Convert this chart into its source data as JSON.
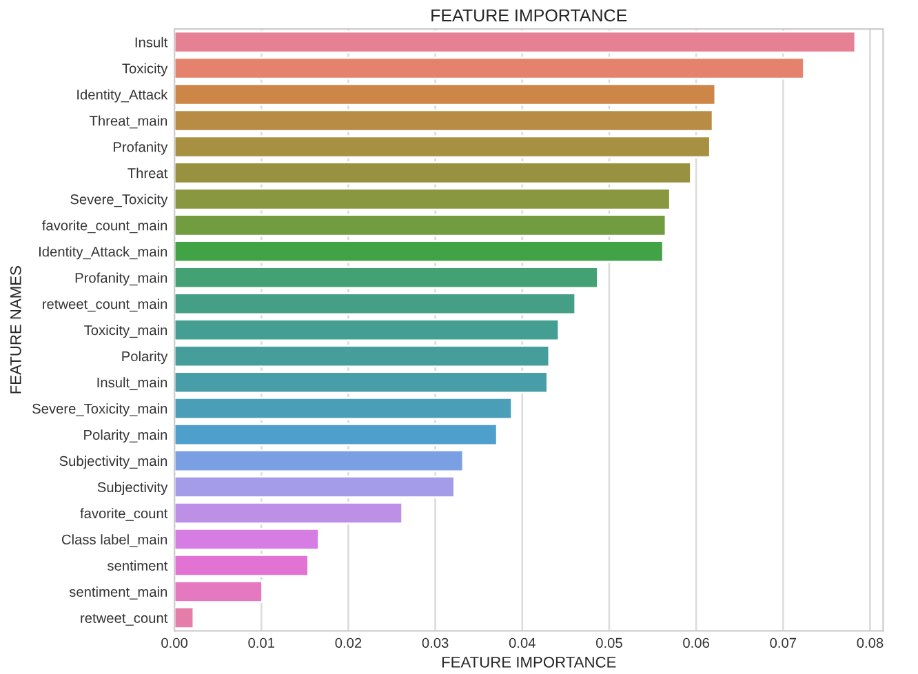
{
  "chart_data": {
    "type": "bar",
    "orientation": "horizontal",
    "title": "FEATURE IMPORTANCE",
    "xlabel": "FEATURE IMPORTANCE",
    "ylabel": "FEATURE NAMES",
    "categories": [
      "Insult",
      "Toxicity",
      "Identity_Attack",
      "Threat_main",
      "Profanity",
      "Threat",
      "Severe_Toxicity",
      "favorite_count_main",
      "Identity_Attack_main",
      "Profanity_main",
      "retweet_count_main",
      "Toxicity_main",
      "Polarity",
      "Insult_main",
      "Severe_Toxicity_main",
      "Polarity_main",
      "Subjectivity_main",
      "Subjectivity",
      "favorite_count",
      "Class label_main",
      "sentiment",
      "sentiment_main",
      "retweet_count"
    ],
    "values": [
      0.0783,
      0.0724,
      0.0622,
      0.0619,
      0.0616,
      0.0594,
      0.057,
      0.0565,
      0.0562,
      0.0487,
      0.0461,
      0.0442,
      0.0431,
      0.0429,
      0.0388,
      0.0371,
      0.0332,
      0.0322,
      0.0262,
      0.0166,
      0.0154,
      0.0101,
      0.0022
    ],
    "colors": [
      "#e68193",
      "#e4826e",
      "#ce8648",
      "#b88c45",
      "#a89042",
      "#989240",
      "#889740",
      "#729c40",
      "#41a346",
      "#43a174",
      "#449f86",
      "#449e92",
      "#459d9c",
      "#479ea8",
      "#4a9eb7",
      "#4f9fcc",
      "#7aa0e3",
      "#a49ce8",
      "#bd8fe6",
      "#d57de3",
      "#e273d4",
      "#e479bf",
      "#e57dab"
    ],
    "xlim": [
      0,
      0.0815
    ],
    "xticks": [
      {
        "value": 0,
        "label": "0.00"
      },
      0.01,
      0.02,
      0.03,
      0.04,
      0.05,
      0.06,
      0.07,
      0.08
    ],
    "grid": "x"
  }
}
